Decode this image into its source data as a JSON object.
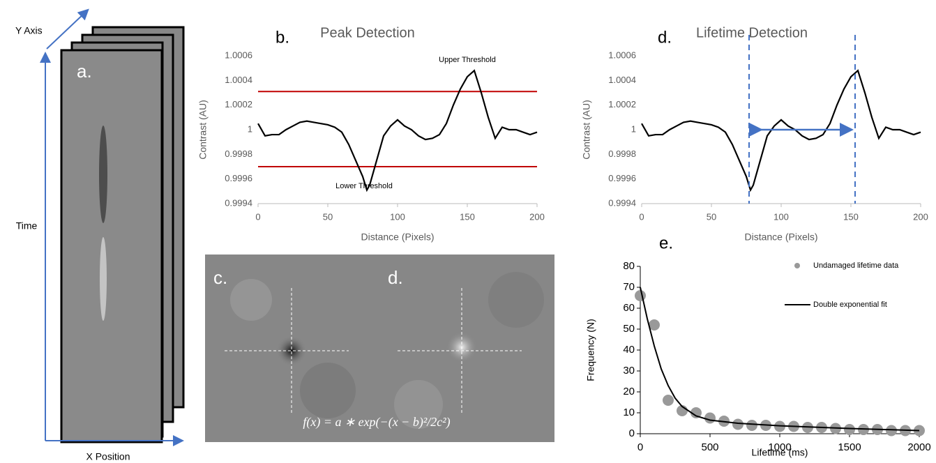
{
  "panel_a": {
    "label": "a.",
    "y_axis": "Y Axis",
    "time": "Time",
    "x_position": "X Position"
  },
  "images": {
    "left_label": "c.",
    "right_label": "d.",
    "formula": "f(x) = a ∗ exp(−(x − b)²/2c²)"
  },
  "chart_data": [
    {
      "type": "line",
      "panel_label": "b.",
      "title": "Peak Detection",
      "x_label": "Distance (Pixels)",
      "y_label": "Contrast (AU)",
      "color": "#000000",
      "x": [
        0,
        5,
        10,
        15,
        20,
        25,
        30,
        35,
        40,
        45,
        50,
        55,
        60,
        65,
        70,
        75,
        78,
        80,
        85,
        90,
        95,
        100,
        105,
        110,
        115,
        120,
        125,
        130,
        135,
        140,
        145,
        150,
        155,
        160,
        165,
        170,
        175,
        180,
        185,
        190,
        195,
        200
      ],
      "values": [
        1.00005,
        0.99995,
        0.99996,
        0.99996,
        1.0,
        1.00003,
        1.00006,
        1.00007,
        1.00006,
        1.00005,
        1.00004,
        1.00002,
        0.99998,
        0.99988,
        0.99975,
        0.99962,
        0.99951,
        0.99955,
        0.99975,
        0.99995,
        1.00003,
        1.00008,
        1.00003,
        1.0,
        0.99995,
        0.99992,
        0.99993,
        0.99996,
        1.00005,
        1.0002,
        1.00033,
        1.00043,
        1.00048,
        1.0003,
        1.0001,
        0.99993,
        1.00002,
        1.0,
        1.0,
        0.99998,
        0.99996,
        0.99998
      ],
      "xlim": [
        0,
        200
      ],
      "xticks": [
        0,
        50,
        100,
        150,
        200
      ],
      "ylim": [
        0.9994,
        1.0006
      ],
      "yticks": [
        0.9994,
        0.9996,
        0.9998,
        1,
        1.0002,
        1.0004,
        1.0006
      ],
      "thresholds": [
        {
          "label": "Upper Threshold",
          "value": 1.00031,
          "color": "#c00000"
        },
        {
          "label": "Lower Threshold",
          "value": 0.9997,
          "color": "#c00000"
        }
      ]
    },
    {
      "type": "line",
      "panel_label": "d.",
      "title": "Lifetime Detection",
      "x_label": "Distance (Pixels)",
      "y_label": "Contrast (AU)",
      "color": "#000000",
      "x": [
        0,
        5,
        10,
        15,
        20,
        25,
        30,
        35,
        40,
        45,
        50,
        55,
        60,
        65,
        70,
        75,
        78,
        80,
        85,
        90,
        95,
        100,
        105,
        110,
        115,
        120,
        125,
        130,
        135,
        140,
        145,
        150,
        155,
        160,
        165,
        170,
        175,
        180,
        185,
        190,
        195,
        200
      ],
      "values": [
        1.00005,
        0.99995,
        0.99996,
        0.99996,
        1.0,
        1.00003,
        1.00006,
        1.00007,
        1.00006,
        1.00005,
        1.00004,
        1.00002,
        0.99998,
        0.99988,
        0.99975,
        0.99962,
        0.99951,
        0.99955,
        0.99975,
        0.99995,
        1.00003,
        1.00008,
        1.00003,
        1.0,
        0.99995,
        0.99992,
        0.99993,
        0.99996,
        1.00005,
        1.0002,
        1.00033,
        1.00043,
        1.00048,
        1.0003,
        1.0001,
        0.99993,
        1.00002,
        1.0,
        1.0,
        0.99998,
        0.99996,
        0.99998
      ],
      "xlim": [
        0,
        200
      ],
      "xticks": [
        0,
        50,
        100,
        150,
        200
      ],
      "ylim": [
        0.9994,
        1.0006
      ],
      "yticks": [
        0.9994,
        0.9996,
        0.9998,
        1,
        1.0002,
        1.0004,
        1.0006
      ],
      "markers": [
        77,
        153
      ],
      "marker_color": "#4472c4",
      "arrow": {
        "x": [
          82,
          147
        ],
        "y": 1.0
      }
    },
    {
      "type": "scatter",
      "panel_label": "e.",
      "x_label": "Lifetime (ms)",
      "y_label": "Frequency (N)",
      "xlim": [
        0,
        2000
      ],
      "xticks": [
        0,
        500,
        1000,
        1500,
        2000
      ],
      "ylim": [
        0,
        80
      ],
      "yticks": [
        0,
        10,
        20,
        30,
        40,
        50,
        60,
        70,
        80
      ],
      "series": [
        {
          "name": "Undamaged lifetime data",
          "color": "#999999",
          "mode": "markers",
          "x": [
            0,
            100,
            200,
            300,
            400,
            500,
            600,
            700,
            800,
            900,
            1000,
            1100,
            1200,
            1300,
            1400,
            1500,
            1600,
            1700,
            1800,
            1900,
            2000
          ],
          "values": [
            66,
            52,
            16,
            11,
            10,
            7.5,
            6,
            4.5,
            4,
            4,
            3.5,
            3.5,
            3,
            3,
            2.5,
            2,
            2,
            2,
            1.5,
            1.5,
            1.5
          ]
        },
        {
          "name": "Double exponential fit",
          "color": "#000000",
          "mode": "line",
          "x": [
            0,
            50,
            100,
            150,
            200,
            250,
            300,
            400,
            500,
            700,
            1000,
            1500,
            2000
          ],
          "values": [
            70,
            55,
            42,
            31,
            23,
            17,
            13,
            8.5,
            6.5,
            5,
            3.8,
            2.5,
            1.5
          ]
        }
      ]
    }
  ]
}
